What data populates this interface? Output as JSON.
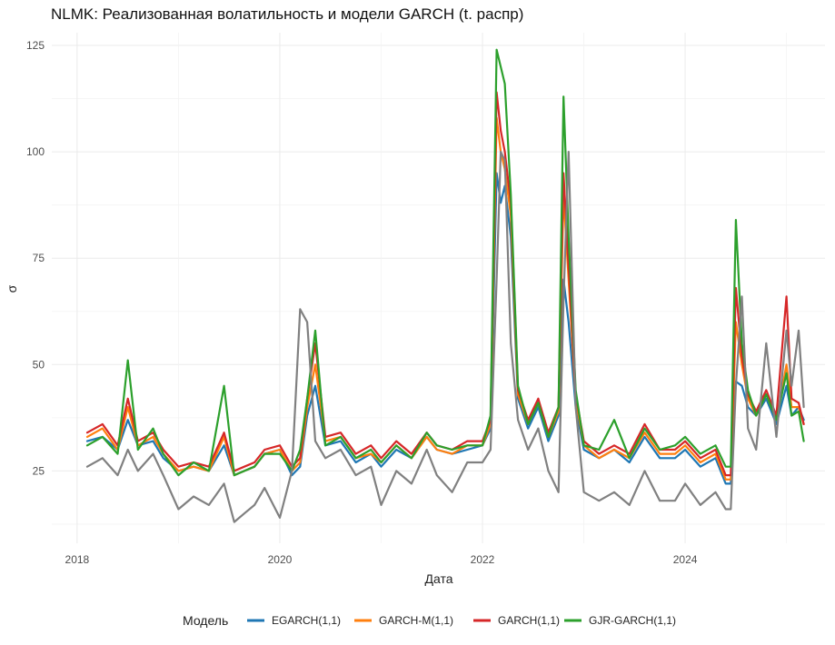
{
  "chart_data": {
    "type": "line",
    "title": "NLMK: Реализованная волатильность и модели GARCH (t. распр)",
    "xlabel": "Дата",
    "ylabel": "σ",
    "xlim": [
      2017.75,
      2025.38
    ],
    "ylim": [
      8,
      128
    ],
    "x_ticks": [
      2018,
      2020,
      2022,
      2024
    ],
    "x_tick_labels": [
      "2018",
      "2020",
      "2022",
      "2024"
    ],
    "y_ticks": [
      25,
      50,
      75,
      100,
      125
    ],
    "y_tick_labels": [
      "25",
      "50",
      "75",
      "100",
      "125"
    ],
    "grid": true,
    "legend_position": "bottom",
    "legend_title": "Модель",
    "x": [
      2018.1,
      2018.25,
      2018.4,
      2018.5,
      2018.6,
      2018.75,
      2018.85,
      2019.0,
      2019.15,
      2019.3,
      2019.45,
      2019.55,
      2019.65,
      2019.75,
      2019.85,
      2020.0,
      2020.12,
      2020.2,
      2020.27,
      2020.35,
      2020.45,
      2020.6,
      2020.75,
      2020.9,
      2021.0,
      2021.15,
      2021.3,
      2021.45,
      2021.55,
      2021.7,
      2021.85,
      2022.0,
      2022.08,
      2022.14,
      2022.18,
      2022.22,
      2022.28,
      2022.35,
      2022.45,
      2022.55,
      2022.65,
      2022.75,
      2022.8,
      2022.85,
      2022.92,
      2023.0,
      2023.15,
      2023.3,
      2023.45,
      2023.6,
      2023.75,
      2023.9,
      2024.0,
      2024.15,
      2024.3,
      2024.4,
      2024.45,
      2024.5,
      2024.56,
      2024.62,
      2024.7,
      2024.8,
      2024.9,
      2025.0,
      2025.05,
      2025.12,
      2025.17
    ],
    "series": [
      {
        "name": "EGARCH(1,1)",
        "color": "#1f77b4",
        "values": [
          32,
          33,
          30,
          37,
          31,
          32,
          28,
          25,
          26,
          25,
          31,
          24,
          25,
          26,
          29,
          30,
          24,
          26,
          38,
          45,
          31,
          32,
          27,
          29,
          26,
          30,
          28,
          33,
          30,
          29,
          30,
          31,
          35,
          95,
          88,
          92,
          80,
          42,
          35,
          40,
          32,
          38,
          70,
          60,
          40,
          30,
          28,
          30,
          27,
          33,
          28,
          28,
          30,
          26,
          28,
          22,
          22,
          46,
          45,
          40,
          38,
          42,
          36,
          45,
          38,
          40,
          37
        ]
      },
      {
        "name": "GARCH-M(1,1)",
        "color": "#ff7f0e",
        "values": [
          33,
          35,
          30,
          40,
          31,
          33,
          29,
          25,
          26,
          25,
          33,
          24,
          25,
          26,
          29,
          30,
          25,
          27,
          40,
          50,
          32,
          33,
          28,
          29,
          27,
          31,
          28,
          33,
          30,
          29,
          31,
          31,
          36,
          108,
          100,
          96,
          85,
          43,
          36,
          41,
          33,
          39,
          90,
          70,
          42,
          31,
          28,
          30,
          28,
          34,
          29,
          29,
          31,
          27,
          29,
          23,
          23,
          60,
          50,
          42,
          38,
          43,
          37,
          50,
          40,
          40,
          36
        ]
      },
      {
        "name": "GARCH(1,1)",
        "color": "#d62728",
        "values": [
          34,
          36,
          31,
          42,
          32,
          34,
          30,
          26,
          27,
          26,
          34,
          25,
          26,
          27,
          30,
          31,
          26,
          28,
          42,
          55,
          33,
          34,
          29,
          31,
          28,
          32,
          29,
          34,
          31,
          30,
          32,
          32,
          37,
          114,
          105,
          100,
          88,
          44,
          37,
          42,
          34,
          40,
          95,
          73,
          43,
          32,
          29,
          31,
          29,
          36,
          30,
          30,
          32,
          28,
          30,
          24,
          24,
          68,
          52,
          43,
          39,
          44,
          38,
          66,
          42,
          41,
          36
        ]
      },
      {
        "name": "GJR-GARCH(1,1)",
        "color": "#2ca02c",
        "values": [
          31,
          33,
          29,
          51,
          30,
          35,
          29,
          24,
          27,
          25,
          45,
          24,
          25,
          26,
          29,
          29,
          25,
          30,
          42,
          58,
          31,
          33,
          28,
          30,
          27,
          31,
          28,
          34,
          31,
          30,
          31,
          31,
          38,
          124,
          120,
          116,
          90,
          45,
          36,
          41,
          33,
          40,
          113,
          80,
          44,
          31,
          30,
          37,
          28,
          35,
          30,
          31,
          33,
          29,
          31,
          26,
          26,
          84,
          55,
          44,
          38,
          43,
          37,
          48,
          38,
          39,
          32
        ]
      },
      {
        "name": "",
        "color": "#808080",
        "values": [
          26,
          28,
          24,
          30,
          25,
          29,
          24,
          16,
          19,
          17,
          22,
          13,
          15,
          17,
          21,
          14,
          25,
          63,
          60,
          32,
          28,
          30,
          24,
          26,
          17,
          25,
          22,
          30,
          24,
          20,
          27,
          27,
          30,
          70,
          100,
          98,
          55,
          37,
          30,
          35,
          25,
          20,
          65,
          100,
          40,
          20,
          18,
          20,
          17,
          25,
          18,
          18,
          22,
          17,
          20,
          16,
          16,
          45,
          66,
          35,
          30,
          55,
          33,
          58,
          45,
          58,
          40
        ]
      }
    ],
    "legend": [
      "EGARCH(1,1)",
      "GARCH-M(1,1)",
      "GARCH(1,1)",
      "GJR-GARCH(1,1)"
    ]
  }
}
